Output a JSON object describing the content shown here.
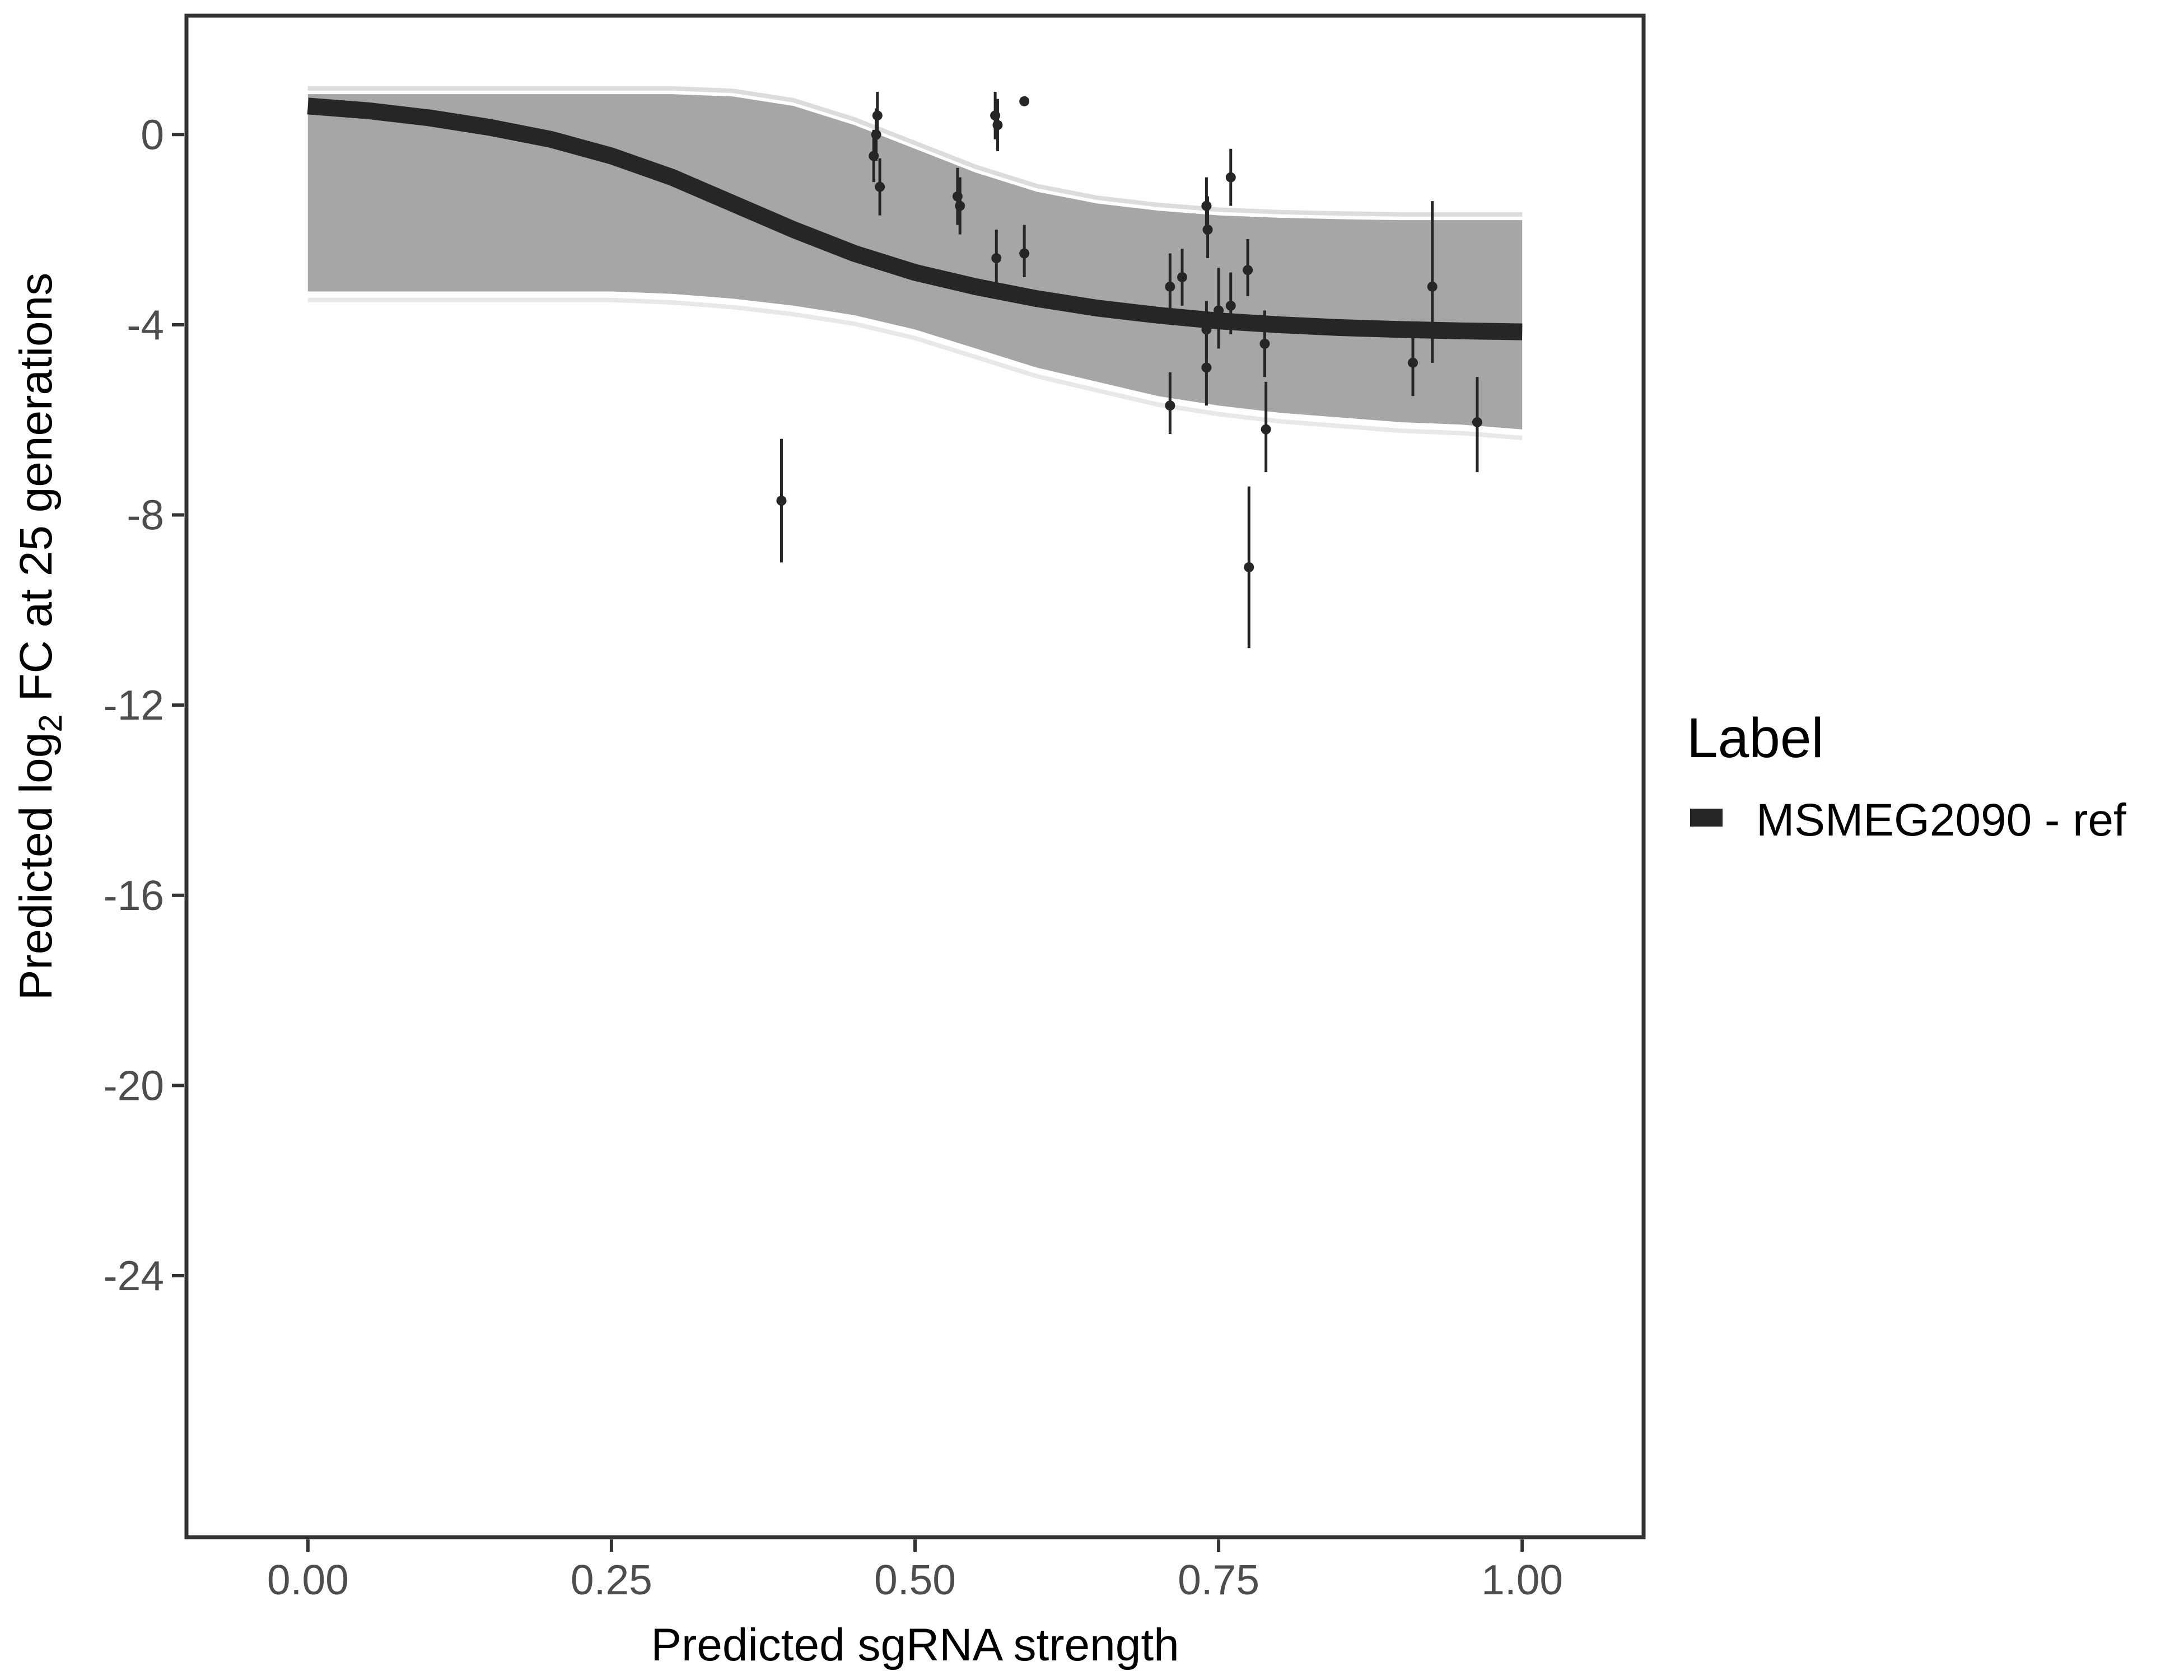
{
  "chart_data": {
    "type": "line",
    "xlabel": "Predicted sgRNA strength",
    "ylabel_prefix": "Predicted  log",
    "ylabel_subscript": "2",
    "ylabel_suffix": " FC at 25 generations",
    "xlim": [
      -0.1,
      1.1
    ],
    "ylim": [
      -29.5,
      2.5
    ],
    "x_ticks": [
      0,
      0.25,
      0.5,
      0.75,
      1
    ],
    "x_tick_labels": [
      "0.00",
      "0.25",
      "0.50",
      "0.75",
      "1.00"
    ],
    "y_ticks": [
      0,
      -4,
      -8,
      -12,
      -16,
      -20,
      -24
    ],
    "y_tick_labels": [
      "0",
      "-4",
      "-8",
      "-12",
      "-16",
      "-20",
      "-24"
    ],
    "grid": false,
    "legend": {
      "title": "Label",
      "position": "right",
      "entries": [
        {
          "label": "MSMEG2090 - ref",
          "color": "#262626"
        }
      ]
    },
    "series": [
      {
        "name": "MSMEG2090 - ref",
        "kind": "fit-line",
        "color": "#262626",
        "x": [
          0,
          0.05,
          0.1,
          0.15,
          0.2,
          0.25,
          0.3,
          0.35,
          0.4,
          0.45,
          0.5,
          0.55,
          0.6,
          0.65,
          0.7,
          0.75,
          0.8,
          0.85,
          0.9,
          0.95,
          1
        ],
        "y": [
          0.6,
          0.5,
          0.35,
          0.15,
          -0.1,
          -0.45,
          -0.9,
          -1.45,
          -2.0,
          -2.5,
          -2.9,
          -3.2,
          -3.45,
          -3.65,
          -3.8,
          -3.92,
          -4.0,
          -4.06,
          -4.1,
          -4.13,
          -4.15
        ]
      },
      {
        "name": "",
        "kind": "points-with-error",
        "color": "#262626",
        "points": [
          {
            "x": 0.39,
            "y": -7.7,
            "ymin": -9.0,
            "ymax": -6.4
          },
          {
            "x": 0.466,
            "y": -0.45,
            "ymin": -1.0,
            "ymax": 0.1
          },
          {
            "x": 0.468,
            "y": 0.0,
            "ymin": -0.55,
            "ymax": 0.55
          },
          {
            "x": 0.469,
            "y": 0.4,
            "ymin": -0.1,
            "ymax": 0.9
          },
          {
            "x": 0.471,
            "y": -1.1,
            "ymin": -1.7,
            "ymax": -0.5
          },
          {
            "x": 0.535,
            "y": -1.3,
            "ymin": -1.9,
            "ymax": -0.7
          },
          {
            "x": 0.537,
            "y": -1.5,
            "ymin": -2.1,
            "ymax": -0.9
          },
          {
            "x": 0.566,
            "y": 0.4,
            "ymin": -0.1,
            "ymax": 0.9
          },
          {
            "x": 0.568,
            "y": 0.2,
            "ymin": -0.35,
            "ymax": 0.75
          },
          {
            "x": 0.567,
            "y": -2.6,
            "ymin": -3.2,
            "ymax": -2.0
          },
          {
            "x": 0.59,
            "y": 0.7,
            "ymin": 0.6,
            "ymax": 0.8
          },
          {
            "x": 0.59,
            "y": -2.5,
            "ymin": -3.0,
            "ymax": -1.9
          },
          {
            "x": 0.71,
            "y": -3.2,
            "ymin": -3.8,
            "ymax": -2.5
          },
          {
            "x": 0.71,
            "y": -5.7,
            "ymin": -6.3,
            "ymax": -5.0
          },
          {
            "x": 0.72,
            "y": -3.0,
            "ymin": -3.6,
            "ymax": -2.4
          },
          {
            "x": 0.74,
            "y": -1.5,
            "ymin": -2.1,
            "ymax": -0.9
          },
          {
            "x": 0.741,
            "y": -2.0,
            "ymin": -2.6,
            "ymax": -1.3
          },
          {
            "x": 0.74,
            "y": -4.1,
            "ymin": -4.7,
            "ymax": -3.5
          },
          {
            "x": 0.74,
            "y": -4.9,
            "ymin": -5.7,
            "ymax": -4.1
          },
          {
            "x": 0.75,
            "y": -3.7,
            "ymin": -4.5,
            "ymax": -2.8
          },
          {
            "x": 0.76,
            "y": -0.9,
            "ymin": -1.5,
            "ymax": -0.3
          },
          {
            "x": 0.76,
            "y": -3.6,
            "ymin": -4.2,
            "ymax": -2.9
          },
          {
            "x": 0.774,
            "y": -2.85,
            "ymin": -3.4,
            "ymax": -2.2
          },
          {
            "x": 0.775,
            "y": -9.1,
            "ymin": -10.8,
            "ymax": -7.4
          },
          {
            "x": 0.788,
            "y": -4.4,
            "ymin": -5.1,
            "ymax": -3.7
          },
          {
            "x": 0.789,
            "y": -6.2,
            "ymin": -7.1,
            "ymax": -5.2
          },
          {
            "x": 0.91,
            "y": -4.8,
            "ymin": -5.5,
            "ymax": -4.0
          },
          {
            "x": 0.926,
            "y": -3.2,
            "ymin": -4.8,
            "ymax": -1.4
          },
          {
            "x": 0.963,
            "y": -6.05,
            "ymin": -7.1,
            "ymax": -5.1
          }
        ]
      }
    ],
    "uncertainty_band": {
      "color": "#a6a6a6",
      "upper": [
        0.85,
        0.85,
        0.85,
        0.85,
        0.85,
        0.85,
        0.85,
        0.8,
        0.6,
        0.2,
        -0.3,
        -0.8,
        -1.2,
        -1.45,
        -1.6,
        -1.7,
        -1.75,
        -1.78,
        -1.8,
        -1.8,
        -1.8
      ],
      "lower": [
        -3.3,
        -3.3,
        -3.3,
        -3.3,
        -3.3,
        -3.3,
        -3.35,
        -3.45,
        -3.6,
        -3.8,
        -4.1,
        -4.5,
        -4.9,
        -5.2,
        -5.5,
        -5.7,
        -5.85,
        -5.95,
        -6.05,
        -6.1,
        -6.2
      ]
    }
  }
}
